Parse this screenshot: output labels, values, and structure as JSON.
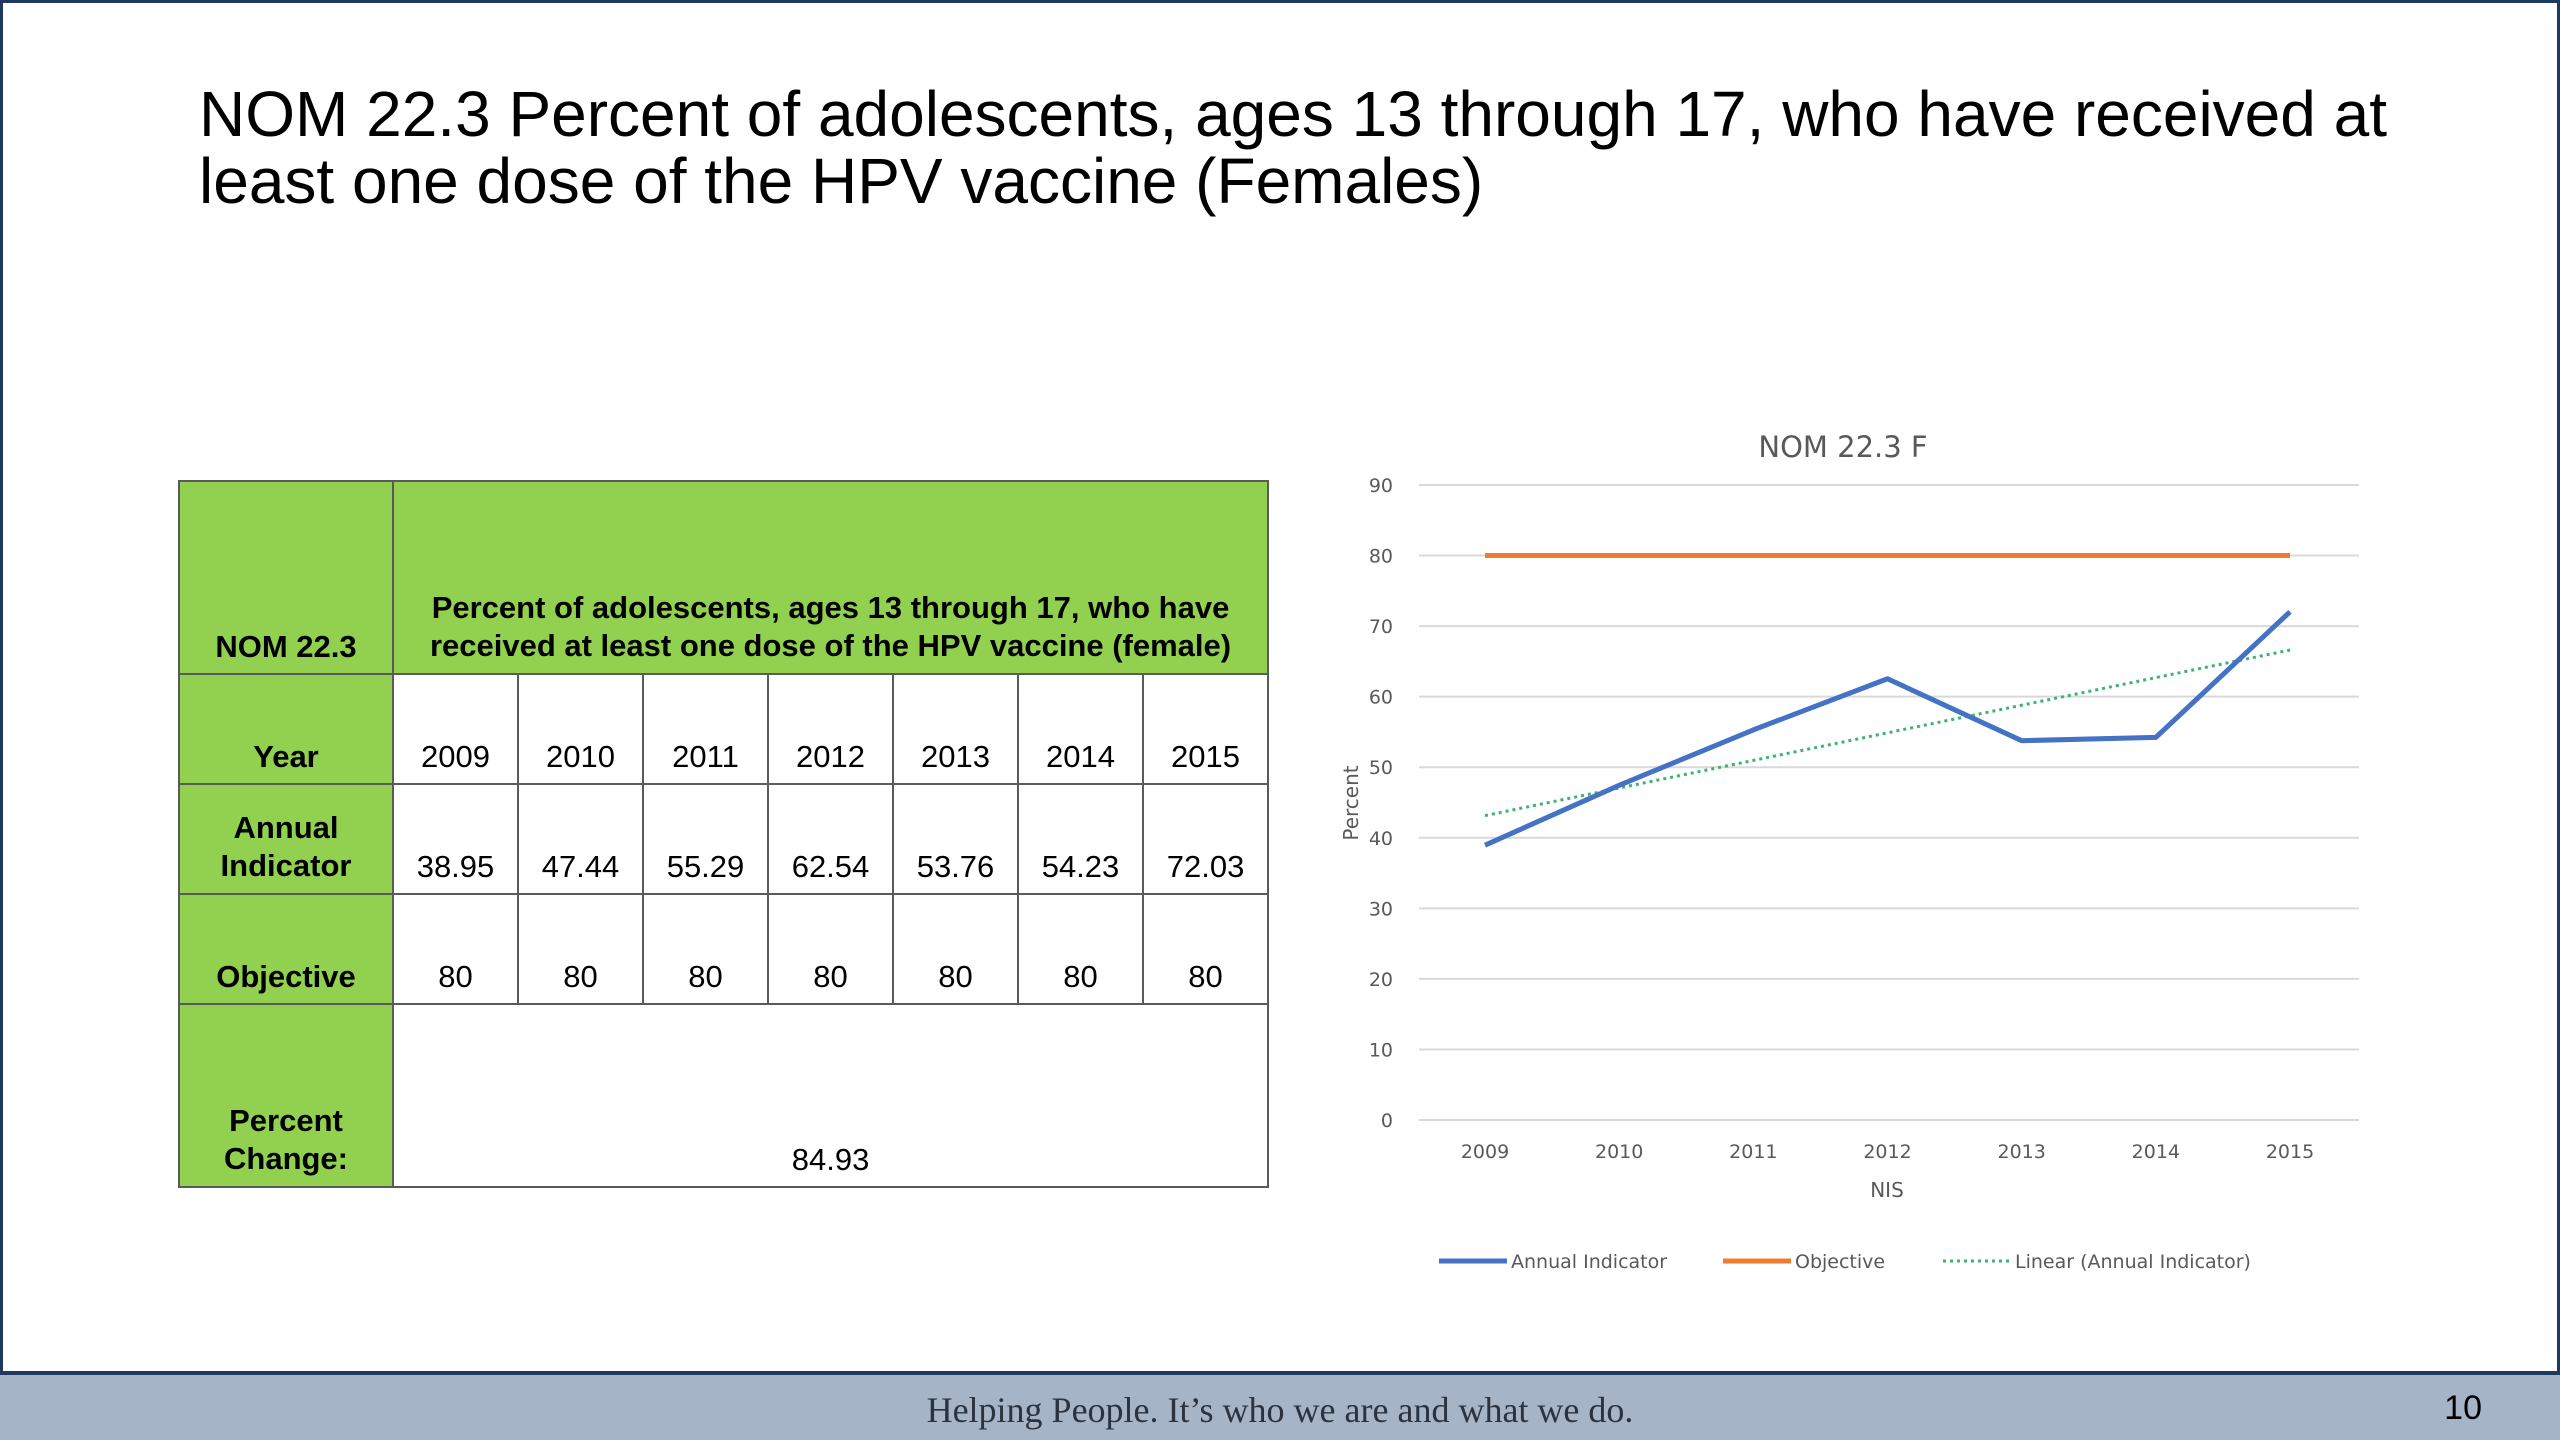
{
  "slide": {
    "title": "NOM 22.3 Percent of adolescents, ages 13 through 17, who have received at least one dose of the HPV vaccine (Females)"
  },
  "table": {
    "measure_label": "NOM 22.3",
    "measure_description": "Percent of adolescents, ages 13 through 17, who have received at least one dose of the HPV vaccine (female)",
    "year_label": "Year",
    "years": [
      "2009",
      "2010",
      "2011",
      "2012",
      "2013",
      "2014",
      "2015"
    ],
    "indicator_label": "Annual Indicator",
    "indicator_values": [
      "38.95",
      "47.44",
      "55.29",
      "62.54",
      "53.76",
      "54.23",
      "72.03"
    ],
    "objective_label": "Objective",
    "objective_values": [
      "80",
      "80",
      "80",
      "80",
      "80",
      "80",
      "80"
    ],
    "percent_change_label": "Percent Change:",
    "percent_change_value": "84.93"
  },
  "chart_data": {
    "type": "line",
    "title": "NOM 22.3 F",
    "xlabel": "NIS",
    "ylabel": "Percent",
    "categories": [
      "2009",
      "2010",
      "2011",
      "2012",
      "2013",
      "2014",
      "2015"
    ],
    "ylim": [
      0,
      90
    ],
    "yticks": [
      0,
      10,
      20,
      30,
      40,
      50,
      60,
      70,
      80,
      90
    ],
    "grid": true,
    "legend_position": "bottom",
    "series": [
      {
        "name": "Annual Indicator",
        "values": [
          38.95,
          47.44,
          55.29,
          62.54,
          53.76,
          54.23,
          72.03
        ],
        "color": "#4472c4",
        "style": "solid"
      },
      {
        "name": "Objective",
        "values": [
          80,
          80,
          80,
          80,
          80,
          80,
          80
        ],
        "color": "#ed7d31",
        "style": "solid"
      },
      {
        "name": "Linear (Annual Indicator)",
        "values": [
          43.14,
          47.05,
          50.96,
          54.88,
          58.79,
          62.7,
          66.61
        ],
        "color": "#3cb371",
        "style": "dotted"
      }
    ]
  },
  "footer": {
    "tagline": "Helping People.  It’s who we are and what we do.",
    "page_number": "10"
  }
}
